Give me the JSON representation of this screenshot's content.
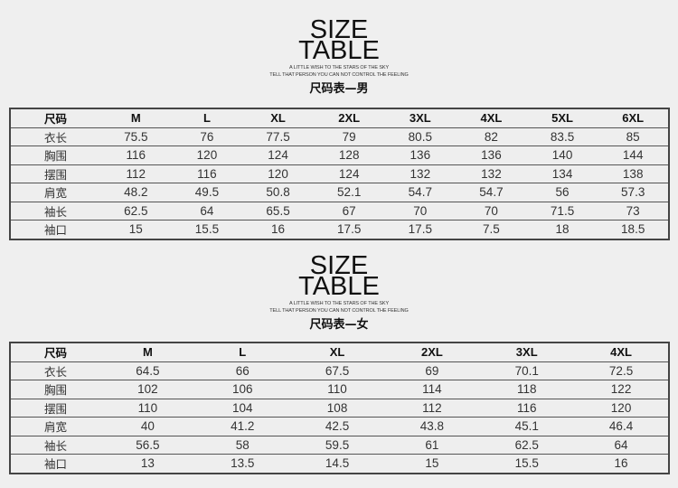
{
  "sections": [
    {
      "title_line1": "SIZE",
      "title_line2": "TABLE",
      "tagline1": "A LITTLE WISH TO THE STARS OF THE SKY",
      "tagline2": "TELL THAT PERSON YOU CAN NOT CONTROL THE FEELING",
      "heading": "尺码表—男",
      "table": {
        "headers": [
          "尺码",
          "M",
          "L",
          "XL",
          "2XL",
          "3XL",
          "4XL",
          "5XL",
          "6XL"
        ],
        "rows": [
          [
            "衣长",
            "75.5",
            "76",
            "77.5",
            "79",
            "80.5",
            "82",
            "83.5",
            "85"
          ],
          [
            "胸围",
            "116",
            "120",
            "124",
            "128",
            "136",
            "136",
            "140",
            "144"
          ],
          [
            "摆围",
            "112",
            "116",
            "120",
            "124",
            "132",
            "132",
            "134",
            "138"
          ],
          [
            "肩宽",
            "48.2",
            "49.5",
            "50.8",
            "52.1",
            "54.7",
            "54.7",
            "56",
            "57.3"
          ],
          [
            "袖长",
            "62.5",
            "64",
            "65.5",
            "67",
            "70",
            "70",
            "71.5",
            "73"
          ],
          [
            "袖口",
            "15",
            "15.5",
            "16",
            "17.5",
            "17.5",
            "7.5",
            "18",
            "18.5"
          ]
        ]
      }
    },
    {
      "title_line1": "SIZE",
      "title_line2": "TABLE",
      "tagline1": "A LITTLE WISH TO THE STARS OF THE SKY",
      "tagline2": "TELL THAT PERSON YOU CAN NOT CONTROL THE FEELING",
      "heading": "尺码表—女",
      "table": {
        "headers": [
          "尺码",
          "M",
          "L",
          "XL",
          "2XL",
          "3XL",
          "4XL"
        ],
        "rows": [
          [
            "衣长",
            "64.5",
            "66",
            "67.5",
            "69",
            "70.1",
            "72.5"
          ],
          [
            "胸围",
            "102",
            "106",
            "110",
            "114",
            "118",
            "122"
          ],
          [
            "摆围",
            "110",
            "104",
            "108",
            "112",
            "116",
            "120"
          ],
          [
            "肩宽",
            "40",
            "41.2",
            "42.5",
            "43.8",
            "45.1",
            "46.4"
          ],
          [
            "袖长",
            "56.5",
            "58",
            "59.5",
            "61",
            "62.5",
            "64"
          ],
          [
            "袖口",
            "13",
            "13.5",
            "14.5",
            "15",
            "15.5",
            "16"
          ]
        ]
      }
    }
  ]
}
